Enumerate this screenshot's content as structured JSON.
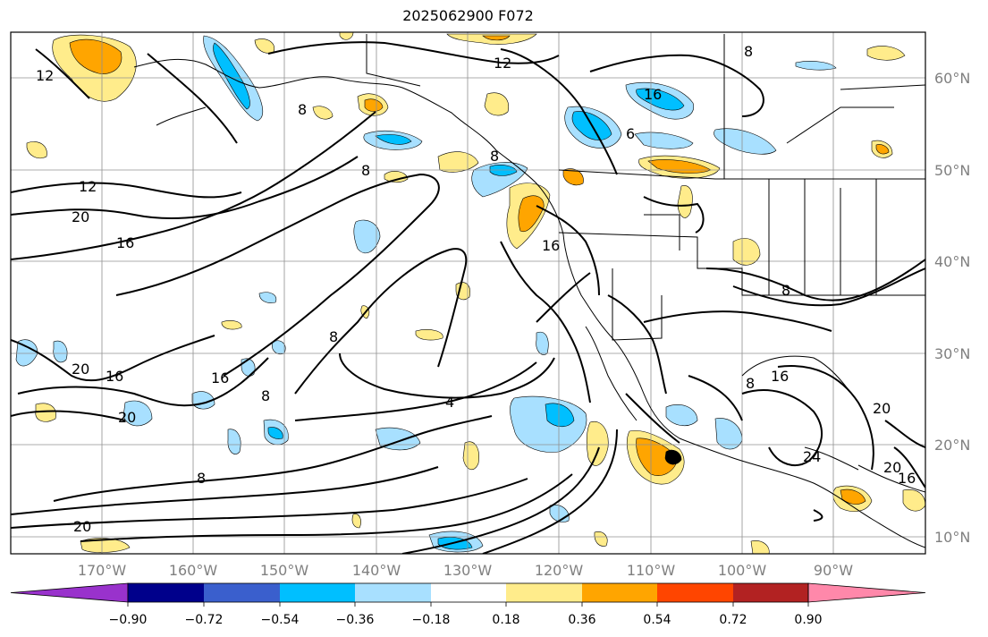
{
  "title": "2025062900 F072",
  "map": {
    "lon_labels": [
      "170°W",
      "160°W",
      "150°W",
      "140°W",
      "130°W",
      "120°W",
      "110°W",
      "100°W",
      "90°W"
    ],
    "lat_labels": [
      "60°N",
      "50°N",
      "40°N",
      "30°N",
      "20°N",
      "10°N"
    ],
    "contour_labels": [
      "12",
      "12",
      "8",
      "8",
      "8",
      "8",
      "6",
      "12",
      "20",
      "16",
      "16",
      "16",
      "20",
      "16",
      "20",
      "8",
      "8",
      "4",
      "8",
      "16",
      "24",
      "20",
      "20",
      "16",
      "8",
      "16",
      "20",
      "8"
    ]
  },
  "colorbar": {
    "ticks": [
      "−0.90",
      "−0.72",
      "−0.54",
      "−0.36",
      "−0.18",
      "0.18",
      "0.36",
      "0.54",
      "0.72",
      "0.90"
    ],
    "colors": [
      "#9932cc",
      "#00008b",
      "#3a5fcd",
      "#00bfff",
      "#a8e0ff",
      "#ffffff",
      "#ffec8b",
      "#ffa500",
      "#ff4500",
      "#b22222",
      "#ff88aa"
    ]
  }
}
